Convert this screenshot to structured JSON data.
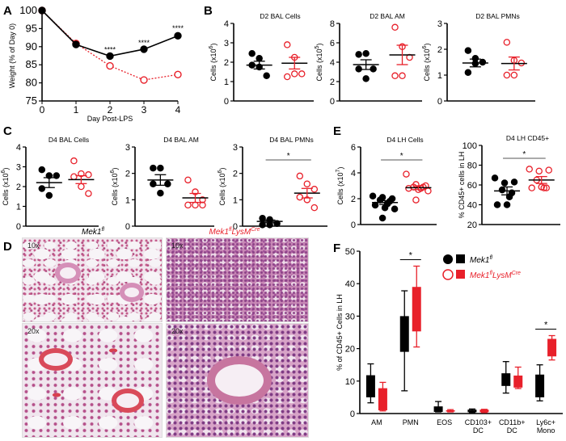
{
  "colors": {
    "black": "#000000",
    "red": "#e8202a",
    "grey": "#555555"
  },
  "panel_letters": {
    "A": "A",
    "B": "B",
    "C": "C",
    "D": "D",
    "E": "E",
    "F": "F"
  },
  "histology": {
    "col1_title": "Mek1",
    "col1_sup": "fl",
    "col2_title_a": "Mek1",
    "col2_sup_a": "fl",
    "col2_title_b": "LysM",
    "col2_sup_b": "Cre",
    "mag_10x": "10x",
    "mag_20x": "20x"
  },
  "legend": {
    "wt": "Mek1",
    "wt_sup": "fl",
    "ko_a": "Mek1",
    "ko_sup_a": "fl",
    "ko_b": "LysM",
    "ko_sup_b": "Cre"
  },
  "chart_data": [
    {
      "id": "A",
      "type": "line",
      "title": "",
      "xlabel": "Day Post-LPS",
      "ylabel": "Weight (% of Day 0)",
      "x": [
        0,
        1,
        2,
        3,
        4
      ],
      "xticks": [
        "0",
        "1",
        "2",
        "3",
        "4"
      ],
      "ylim": [
        75,
        100
      ],
      "yticks": [
        "75",
        "80",
        "85",
        "90",
        "95",
        "100"
      ],
      "series": [
        {
          "name": "Mek1fl",
          "color": "#000000",
          "values": [
            100,
            90.6,
            87.4,
            89.3,
            93.0
          ],
          "err": [
            0,
            0.3,
            0.4,
            0.4,
            0.8
          ]
        },
        {
          "name": "Mek1fl LysMCre",
          "color": "#e8202a",
          "values": [
            100,
            90.9,
            84.7,
            80.8,
            82.3
          ],
          "err": [
            0,
            0.3,
            0.4,
            0.6,
            1.0
          ]
        }
      ],
      "annotations": [
        {
          "x": 2,
          "text": "****"
        },
        {
          "x": 3,
          "text": "****"
        },
        {
          "x": 4,
          "text": "****"
        }
      ]
    },
    {
      "id": "B1",
      "type": "scatter",
      "title": "D2 BAL Cells",
      "ylabel": "Cells (x10",
      "ylabel_sup": "6",
      "ylabel_end": ")",
      "ylim": [
        0,
        4
      ],
      "yticks": [
        "0",
        "1",
        "2",
        "3",
        "4"
      ],
      "groups": [
        {
          "name": "Mek1fl",
          "points": [
            2.45,
            2.2,
            1.3,
            1.85,
            1.75
          ],
          "mean": 1.85,
          "sem": 0.2
        },
        {
          "name": "Mek1fl LysMCre",
          "points": [
            2.9,
            2.25,
            1.4,
            1.25,
            1.4
          ],
          "mean": 1.95,
          "sem": 0.3
        }
      ]
    },
    {
      "id": "B2",
      "type": "scatter",
      "title": "D2 BAL AM",
      "ylabel": "Cells (x10",
      "ylabel_sup": "5",
      "ylabel_end": ")",
      "ylim": [
        0,
        8
      ],
      "yticks": [
        "0",
        "2",
        "4",
        "6",
        "8"
      ],
      "groups": [
        {
          "name": "Mek1fl",
          "points": [
            4.8,
            4.9,
            3.3,
            3.3,
            2.3
          ],
          "mean": 3.75,
          "sem": 0.5
        },
        {
          "name": "Mek1fl LysMCre",
          "points": [
            7.6,
            5.6,
            4.5,
            2.6,
            2.6
          ],
          "mean": 4.75,
          "sem": 1.0
        }
      ]
    },
    {
      "id": "B3",
      "type": "scatter",
      "title": "D2 BAL PMNs",
      "ylabel": "Cells (x10",
      "ylabel_sup": "6",
      "ylabel_end": ")",
      "ylim": [
        0,
        3
      ],
      "yticks": [
        "0",
        "1",
        "2",
        "3"
      ],
      "groups": [
        {
          "name": "Mek1fl",
          "points": [
            1.95,
            1.65,
            1.5,
            1.1,
            1.45
          ],
          "mean": 1.47,
          "sem": 0.15
        },
        {
          "name": "Mek1fl LysMCre",
          "points": [
            2.27,
            1.57,
            1.47,
            1.0,
            1.0
          ],
          "mean": 1.45,
          "sem": 0.25
        }
      ]
    },
    {
      "id": "C1",
      "type": "scatter",
      "title": "D4 BAL Cells",
      "ylabel": "Cells (x10",
      "ylabel_sup": "6",
      "ylabel_end": ")",
      "ylim": [
        0,
        4
      ],
      "yticks": [
        "0",
        "1",
        "2",
        "3",
        "4"
      ],
      "groups": [
        {
          "name": "Mek1fl",
          "points": [
            2.85,
            2.55,
            2.55,
            1.9,
            1.55
          ],
          "mean": 2.2,
          "sem": 0.25
        },
        {
          "name": "Mek1fl LysMCre",
          "points": [
            3.3,
            2.65,
            2.6,
            2.5,
            2.0,
            1.65
          ],
          "mean": 2.35,
          "sem": 0.2
        }
      ]
    },
    {
      "id": "C2",
      "type": "scatter",
      "title": "D4 BAL AM",
      "ylabel": "Cells (x10",
      "ylabel_sup": "6",
      "ylabel_end": ")",
      "ylim": [
        0,
        3
      ],
      "yticks": [
        "0",
        "1",
        "2",
        "3"
      ],
      "groups": [
        {
          "name": "Mek1fl",
          "points": [
            2.2,
            2.2,
            1.6,
            1.6,
            1.25
          ],
          "mean": 1.75,
          "sem": 0.2
        },
        {
          "name": "Mek1fl LysMCre",
          "points": [
            1.75,
            1.3,
            1.0,
            0.8,
            0.8,
            0.8
          ],
          "mean": 1.07,
          "sem": 0.17
        }
      ]
    },
    {
      "id": "C3",
      "type": "scatter",
      "title": "D4 BAL PMNs",
      "ylabel": "Cells (x10",
      "ylabel_sup": "6",
      "ylabel_end": ")",
      "ylim": [
        0,
        3
      ],
      "yticks": [
        "0",
        "1",
        "2",
        "3"
      ],
      "sig": "*",
      "groups": [
        {
          "name": "Mek1fl",
          "points": [
            0.3,
            0.25,
            0.1,
            0.05,
            0.05
          ],
          "mean": 0.18,
          "sem": 0.05
        },
        {
          "name": "Mek1fl LysMCre",
          "points": [
            1.9,
            1.6,
            1.4,
            1.1,
            1.0,
            0.7
          ],
          "mean": 1.25,
          "sem": 0.18
        }
      ]
    },
    {
      "id": "E1",
      "type": "scatter",
      "title": "D4 LH Cells",
      "ylabel": "Cells (x10",
      "ylabel_sup": "7",
      "ylabel_end": ")",
      "ylim": [
        0,
        6
      ],
      "yticks": [
        "0",
        "2",
        "4",
        "6"
      ],
      "sig": "*",
      "groups": [
        {
          "name": "Mek1fl",
          "points": [
            2.2,
            2.1,
            2.0,
            1.9,
            1.8,
            1.6,
            1.5,
            1.3,
            1.2,
            0.5
          ],
          "mean": 1.7,
          "sem": 0.15
        },
        {
          "name": "Mek1fl LysMCre",
          "points": [
            3.9,
            3.1,
            3.0,
            2.9,
            2.9,
            2.8,
            2.8,
            2.7,
            2.6,
            1.9
          ],
          "mean": 2.85,
          "sem": 0.15
        }
      ]
    },
    {
      "id": "E2",
      "type": "scatter",
      "title": "D4 LH CD45+",
      "ylabel": "% CD45+ cells in LH",
      "ylim": [
        20,
        100
      ],
      "yticks": [
        "20",
        "40",
        "60",
        "80",
        "100"
      ],
      "sig": "*",
      "groups": [
        {
          "name": "Mek1fl",
          "points": [
            67,
            62,
            63,
            55,
            52,
            48,
            40,
            40
          ],
          "mean": 54,
          "sem": 4
        },
        {
          "name": "Mek1fl LysMCre",
          "points": [
            76,
            74,
            75,
            65,
            57,
            57,
            57,
            58
          ],
          "mean": 65,
          "sem": 3.5
        }
      ]
    },
    {
      "id": "F",
      "type": "box",
      "ylabel": "% of CD45+ Cells in LH",
      "ylim": [
        0,
        50
      ],
      "yticks": [
        "0",
        "10",
        "20",
        "30",
        "40",
        "50"
      ],
      "categories": [
        [
          "AM"
        ],
        [
          "PMN"
        ],
        [
          "EOS"
        ],
        [
          "CD103+",
          "DC"
        ],
        [
          "CD11b+",
          "DC"
        ],
        [
          "Ly6c+",
          "Mono"
        ]
      ],
      "series": [
        {
          "name": "Mek1fl",
          "color": "#000000",
          "boxes": [
            [
              3.3,
              5,
              11.8,
              15.3
            ],
            [
              7,
              19,
              30,
              37.8
            ],
            [
              0.5,
              0.5,
              2.2,
              3.7
            ],
            [
              0.3,
              0.4,
              1.2,
              1.4
            ],
            [
              6.3,
              8.5,
              12.4,
              16
            ],
            [
              3.9,
              5,
              12,
              15
            ]
          ]
        },
        {
          "name": "Mek1fl LysMCre",
          "color": "#e8202a",
          "boxes": [
            [
              0.8,
              1,
              7.8,
              9.6
            ],
            [
              20.5,
              25.3,
              39,
              45.4
            ],
            [
              0.5,
              0.6,
              1.0,
              1.2
            ],
            [
              0.3,
              0.4,
              1.2,
              1.3
            ],
            [
              7.7,
              8,
              11.7,
              14.3
            ],
            [
              16.5,
              17.6,
              23,
              24
            ]
          ]
        }
      ],
      "significance": [
        {
          "category": 1,
          "text": "*"
        },
        {
          "category": 5,
          "text": "*"
        }
      ]
    }
  ]
}
